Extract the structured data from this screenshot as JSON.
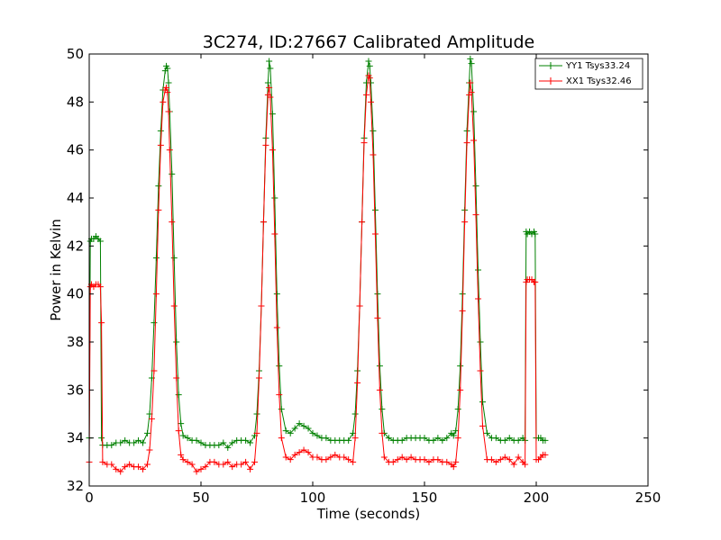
{
  "chart_data": {
    "type": "line",
    "title": "3C274, ID:27667 Calibrated Amplitude",
    "xlabel": "Time (seconds)",
    "ylabel": "Power in Kelvin",
    "xlim": [
      0,
      250
    ],
    "ylim": [
      32,
      50
    ],
    "xticks": [
      0,
      50,
      100,
      150,
      200,
      250
    ],
    "yticks": [
      32,
      34,
      36,
      38,
      40,
      42,
      44,
      46,
      48,
      50
    ],
    "grid": false,
    "legend_position": "top-right",
    "markers": "plus",
    "series": [
      {
        "name": "YY1 Tsys33.24",
        "color": "#008000",
        "x": [
          0,
          0.5,
          1,
          2,
          3,
          4,
          5,
          5.5,
          6,
          8,
          10,
          12,
          14,
          16,
          18,
          20,
          22,
          24,
          26,
          27,
          28,
          29,
          30,
          31,
          32,
          33,
          34,
          34.5,
          35,
          35.5,
          36,
          37,
          38,
          39,
          40,
          41,
          42,
          44,
          46,
          48,
          50,
          52,
          54,
          56,
          58,
          60,
          62,
          64,
          66,
          68,
          70,
          72,
          74,
          75,
          76,
          77,
          78,
          79,
          80,
          80.5,
          81,
          82,
          83,
          84,
          85,
          86,
          88,
          90,
          92,
          94,
          96,
          98,
          100,
          102,
          104,
          106,
          108,
          110,
          112,
          114,
          116,
          118,
          119,
          120,
          121,
          122,
          123,
          124,
          125,
          125.5,
          126,
          127,
          128,
          129,
          130,
          131,
          132,
          134,
          136,
          138,
          140,
          142,
          144,
          146,
          148,
          150,
          152,
          154,
          156,
          158,
          160,
          162,
          163,
          164,
          165,
          166,
          167,
          168,
          169,
          170,
          170.5,
          171,
          172,
          173,
          174,
          175,
          176,
          178,
          180,
          182,
          184,
          186,
          188,
          190,
          192,
          194,
          195,
          195.5,
          196,
          197,
          198,
          199,
          199.5,
          200,
          201,
          202,
          203,
          204
        ],
        "y": [
          34.0,
          42.2,
          42.3,
          42.3,
          42.4,
          42.3,
          42.2,
          34.0,
          33.7,
          33.7,
          33.7,
          33.8,
          33.8,
          33.9,
          33.8,
          33.8,
          33.9,
          33.8,
          34.2,
          35.0,
          36.5,
          38.8,
          41.5,
          44.5,
          46.8,
          48.5,
          49.3,
          49.5,
          49.4,
          48.8,
          47.6,
          45.0,
          41.5,
          38.0,
          35.8,
          34.6,
          34.1,
          34.0,
          33.9,
          33.9,
          33.8,
          33.7,
          33.7,
          33.7,
          33.7,
          33.8,
          33.6,
          33.8,
          33.9,
          33.9,
          33.9,
          33.8,
          34.1,
          35.0,
          36.8,
          39.5,
          43.0,
          46.5,
          48.8,
          49.7,
          49.4,
          47.5,
          44.0,
          40.0,
          37.0,
          35.2,
          34.3,
          34.2,
          34.4,
          34.6,
          34.5,
          34.4,
          34.2,
          34.1,
          34.0,
          34.0,
          33.9,
          33.9,
          33.9,
          33.9,
          33.9,
          34.2,
          35.0,
          36.8,
          39.5,
          43.0,
          46.5,
          48.8,
          49.7,
          49.5,
          48.8,
          46.8,
          43.5,
          40.0,
          37.0,
          35.2,
          34.2,
          34.0,
          33.9,
          33.9,
          33.9,
          34.0,
          34.0,
          34.0,
          34.0,
          34.0,
          33.9,
          33.9,
          34.0,
          33.9,
          34.0,
          34.2,
          34.1,
          34.3,
          35.2,
          37.0,
          40.0,
          43.5,
          46.8,
          48.8,
          49.8,
          49.6,
          47.6,
          44.5,
          41.0,
          38.0,
          35.5,
          34.2,
          34.0,
          34.0,
          33.9,
          33.9,
          34.0,
          33.9,
          33.9,
          34.0,
          33.9,
          42.6,
          42.5,
          42.6,
          42.5,
          42.6,
          42.5,
          34.0,
          34.0,
          34.0,
          33.9,
          33.9
        ]
      },
      {
        "name": "XX1 Tsys32.46",
        "color": "#ff0000",
        "x": [
          0,
          0.5,
          1,
          2,
          3,
          4,
          5,
          5.5,
          6,
          8,
          10,
          12,
          14,
          16,
          18,
          20,
          22,
          24,
          26,
          27,
          28,
          29,
          30,
          31,
          32,
          33,
          34,
          34.5,
          35,
          35.5,
          36,
          37,
          38,
          39,
          40,
          41,
          42,
          44,
          46,
          48,
          50,
          52,
          54,
          56,
          58,
          60,
          62,
          64,
          66,
          68,
          70,
          72,
          74,
          75,
          76,
          77,
          78,
          79,
          80,
          80.5,
          81,
          82,
          83,
          84,
          85,
          86,
          88,
          90,
          92,
          94,
          96,
          98,
          100,
          102,
          104,
          106,
          108,
          110,
          112,
          114,
          116,
          118,
          119,
          120,
          121,
          122,
          123,
          124,
          125,
          125.5,
          126,
          127,
          128,
          129,
          130,
          131,
          132,
          134,
          136,
          138,
          140,
          142,
          144,
          146,
          148,
          150,
          152,
          154,
          156,
          158,
          160,
          162,
          163,
          164,
          165,
          166,
          167,
          168,
          169,
          170,
          170.5,
          171,
          172,
          173,
          174,
          175,
          176,
          178,
          180,
          182,
          184,
          186,
          188,
          190,
          192,
          194,
          195,
          195.5,
          196,
          197,
          198,
          199,
          199.5,
          200,
          201,
          202,
          203,
          204
        ],
        "y": [
          33.0,
          40.3,
          40.4,
          40.3,
          40.4,
          40.4,
          40.3,
          38.8,
          33.0,
          32.9,
          32.9,
          32.7,
          32.6,
          32.8,
          32.9,
          32.8,
          32.8,
          32.7,
          32.9,
          33.5,
          34.8,
          36.8,
          40.0,
          43.5,
          46.2,
          48.0,
          48.5,
          48.6,
          48.4,
          47.6,
          46.0,
          43.0,
          39.5,
          36.5,
          34.3,
          33.3,
          33.1,
          33.0,
          32.9,
          32.6,
          32.7,
          32.8,
          33.0,
          33.0,
          32.9,
          32.9,
          33.0,
          32.8,
          32.9,
          32.9,
          33.0,
          32.7,
          33.0,
          34.2,
          36.5,
          39.5,
          43.0,
          46.2,
          48.3,
          48.6,
          48.2,
          46.0,
          42.5,
          38.6,
          35.8,
          34.0,
          33.2,
          33.1,
          33.3,
          33.4,
          33.5,
          33.4,
          33.2,
          33.2,
          33.1,
          33.1,
          33.2,
          33.3,
          33.2,
          33.2,
          33.1,
          33.0,
          34.0,
          36.3,
          39.5,
          43.0,
          46.3,
          48.3,
          49.1,
          49.0,
          48.0,
          45.8,
          42.5,
          39.0,
          36.0,
          34.2,
          33.2,
          33.0,
          33.0,
          33.1,
          33.2,
          33.1,
          33.2,
          33.1,
          33.1,
          33.1,
          33.0,
          33.1,
          33.1,
          33.0,
          33.0,
          32.9,
          32.8,
          33.0,
          34.0,
          36.0,
          39.3,
          43.0,
          46.3,
          48.3,
          48.8,
          48.4,
          46.4,
          43.3,
          39.8,
          36.8,
          34.5,
          33.1,
          33.1,
          33.0,
          33.1,
          33.2,
          33.1,
          32.9,
          33.2,
          33.0,
          32.9,
          40.5,
          40.6,
          40.6,
          40.6,
          40.5,
          40.5,
          33.1,
          33.1,
          33.2,
          33.3,
          33.3
        ]
      }
    ]
  }
}
